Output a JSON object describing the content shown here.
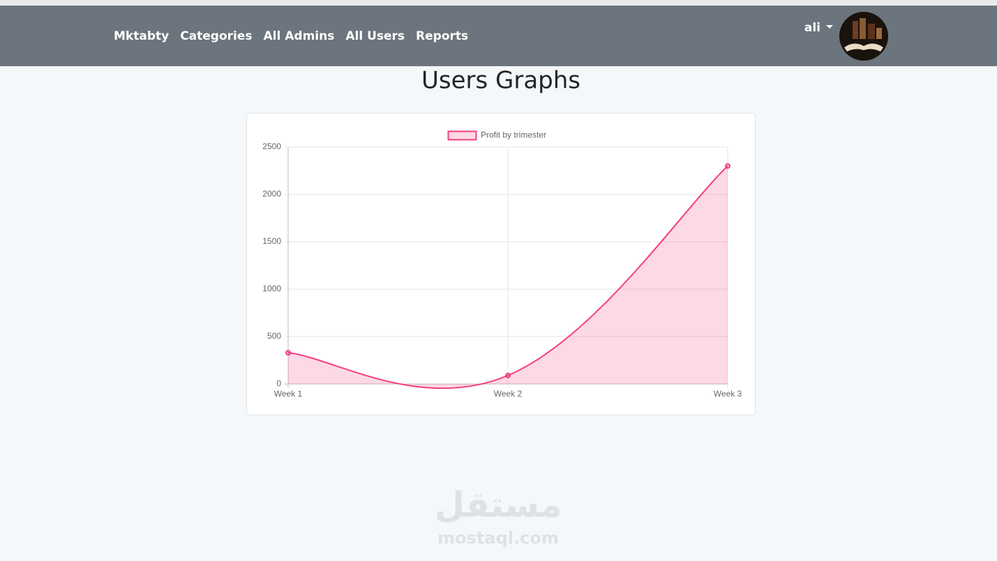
{
  "nav": {
    "brand": "Mktabty",
    "links": [
      "Categories",
      "All Admins",
      "All Users",
      "Reports"
    ],
    "user": "ali"
  },
  "header": {
    "title": "Users Graphs"
  },
  "chart_data": {
    "type": "line",
    "categories": [
      "Week 1",
      "Week 2",
      "Week 3"
    ],
    "series": [
      {
        "name": "Profit by trimester",
        "color": "#f53d80",
        "values": [
          330,
          90,
          2300
        ]
      }
    ],
    "ylim": [
      0,
      2500
    ],
    "yticks": [
      0,
      500,
      1000,
      1500,
      2000,
      2500
    ],
    "grid": true,
    "fill": true,
    "legend": "top"
  },
  "watermark": {
    "arabic": "مستقل",
    "site": "mostaql.com"
  }
}
